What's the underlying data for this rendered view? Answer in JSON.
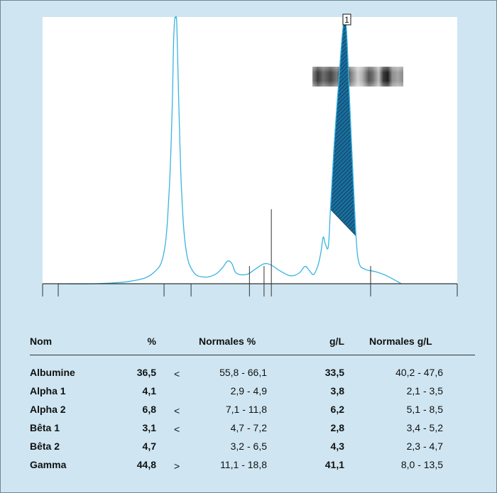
{
  "chart_data": {
    "type": "line",
    "title": "",
    "xlabel": "",
    "ylabel": "",
    "marker_label": "1",
    "colors": {
      "curve": "#39b4e0",
      "peak_fill": "#1a6f9f",
      "hatch": "#0c3550"
    },
    "series": [
      {
        "values": [
          [
            0,
            0.0
          ],
          [
            50,
            0.0
          ],
          [
            100,
            0.01
          ],
          [
            130,
            0.04
          ],
          [
            145,
            0.12
          ],
          [
            152,
            0.35
          ],
          [
            156,
            0.65
          ],
          [
            158,
            0.9
          ],
          [
            159.5,
            0.99
          ],
          [
            161,
            1.0
          ],
          [
            162.5,
            0.97
          ],
          [
            165,
            0.7
          ],
          [
            169,
            0.35
          ],
          [
            175,
            0.13
          ],
          [
            185,
            0.045
          ],
          [
            200,
            0.025
          ],
          [
            215,
            0.035
          ],
          [
            225,
            0.06
          ],
          [
            232,
            0.085
          ],
          [
            238,
            0.075
          ],
          [
            244,
            0.04
          ],
          [
            258,
            0.035
          ],
          [
            270,
            0.055
          ],
          [
            282,
            0.075
          ],
          [
            292,
            0.07
          ],
          [
            303,
            0.05
          ],
          [
            318,
            0.03
          ],
          [
            330,
            0.04
          ],
          [
            338,
            0.065
          ],
          [
            344,
            0.05
          ],
          [
            350,
            0.035
          ],
          [
            356,
            0.07
          ],
          [
            360,
            0.12
          ],
          [
            363,
            0.175
          ],
          [
            366,
            0.15
          ],
          [
            370,
            0.14
          ],
          [
            373,
            0.28
          ],
          [
            378,
            0.52
          ],
          [
            384,
            0.75
          ],
          [
            389,
            0.93
          ],
          [
            392,
            0.99
          ],
          [
            395,
            0.95
          ],
          [
            399,
            0.7
          ],
          [
            404,
            0.4
          ],
          [
            408,
            0.18
          ],
          [
            412,
            0.08
          ],
          [
            420,
            0.055
          ],
          [
            435,
            0.045
          ],
          [
            450,
            0.03
          ],
          [
            470,
            0.0
          ]
        ]
      }
    ],
    "xlim": [
      0,
      500
    ],
    "ylim": [
      0,
      1
    ],
    "tick_x": [
      0,
      145,
      182,
      262,
      282,
      292,
      428
    ]
  },
  "gel_band": {
    "label": "electrophoresis-gel-strip"
  },
  "table": {
    "headers": {
      "name": "Nom",
      "pct": "%",
      "normal_pct": "Normales %",
      "gl": "g/L",
      "normal_gl": "Normales g/L"
    },
    "rows": [
      {
        "name": "Albumine",
        "pct": "36,5",
        "flag": "<",
        "normal_pct": "55,8 - 66,1",
        "gl": "33,5",
        "normal_gl": "40,2 - 47,6"
      },
      {
        "name": "Alpha 1",
        "pct": "4,1",
        "flag": "",
        "normal_pct": "2,9 - 4,9",
        "gl": "3,8",
        "normal_gl": "2,1 - 3,5"
      },
      {
        "name": "Alpha 2",
        "pct": "6,8",
        "flag": "<",
        "normal_pct": "7,1 - 11,8",
        "gl": "6,2",
        "normal_gl": "5,1 - 8,5"
      },
      {
        "name": "Bêta 1",
        "pct": "3,1",
        "flag": "<",
        "normal_pct": "4,7 - 7,2",
        "gl": "2,8",
        "normal_gl": "3,4 - 5,2"
      },
      {
        "name": "Bêta 2",
        "pct": "4,7",
        "flag": "",
        "normal_pct": "3,2 - 6,5",
        "gl": "4,3",
        "normal_gl": "2,3 - 4,7"
      },
      {
        "name": "Gamma",
        "pct": "44,8",
        "flag": ">",
        "normal_pct": "11,1 - 18,8",
        "gl": "41,1",
        "normal_gl": "8,0 - 13,5"
      }
    ]
  }
}
